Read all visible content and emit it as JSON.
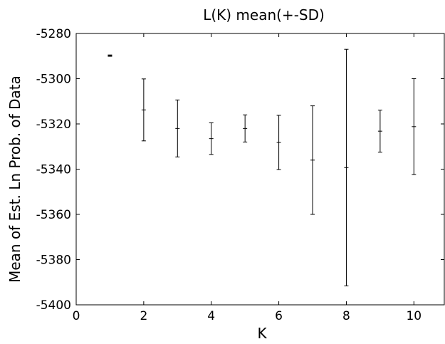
{
  "chart_data": {
    "type": "errorbar",
    "title": "L(K) mean(+-SD)",
    "xlabel": "K",
    "ylabel": "Mean of Est. Ln Prob. of Data",
    "xlim": [
      0,
      10.9
    ],
    "ylim": [
      -5400,
      -5280
    ],
    "xticks": [
      "0",
      "2",
      "4",
      "6",
      "8",
      "10"
    ],
    "yticks": [
      "-5400",
      "-5380",
      "-5360",
      "-5340",
      "-5320",
      "-5300",
      "-5280"
    ],
    "grid": false,
    "points": [
      {
        "k": 1,
        "mean": -5289.8,
        "sd": 0.3
      },
      {
        "k": 2,
        "mean": -5313.8,
        "sd": 13.7
      },
      {
        "k": 3,
        "mean": -5322.0,
        "sd": 12.6
      },
      {
        "k": 4,
        "mean": -5326.5,
        "sd": 7.0
      },
      {
        "k": 5,
        "mean": -5322.0,
        "sd": 6.0
      },
      {
        "k": 6,
        "mean": -5328.2,
        "sd": 12.0
      },
      {
        "k": 7,
        "mean": -5336.0,
        "sd": 24.0
      },
      {
        "k": 8,
        "mean": -5339.3,
        "sd": 52.3
      },
      {
        "k": 9,
        "mean": -5323.2,
        "sd": 9.3
      },
      {
        "k": 10,
        "mean": -5321.2,
        "sd": 21.2
      }
    ]
  }
}
